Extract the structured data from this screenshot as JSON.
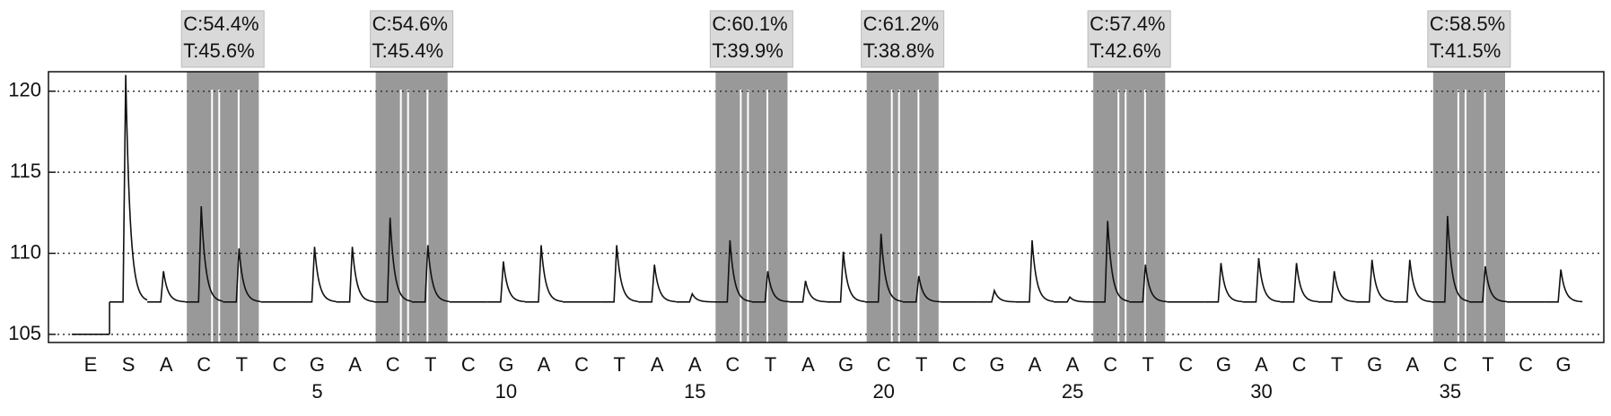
{
  "chart_data": {
    "type": "pyrogram",
    "categories": [
      "E",
      "S",
      "A",
      "C",
      "T",
      "C",
      "G",
      "A",
      "C",
      "T",
      "C",
      "G",
      "A",
      "C",
      "T",
      "A",
      "A",
      "C",
      "T",
      "A",
      "G",
      "C",
      "T",
      "C",
      "G",
      "A",
      "A",
      "C",
      "T",
      "C",
      "G",
      "A",
      "C",
      "T",
      "G",
      "A",
      "C",
      "T",
      "C",
      "G"
    ],
    "values": [
      105,
      121,
      108.9,
      112.9,
      110.3,
      107,
      110.4,
      110.4,
      112.2,
      110.5,
      107,
      109.5,
      110.5,
      107,
      110.5,
      109.3,
      107.5,
      110.8,
      108.9,
      108.3,
      110.1,
      111.2,
      108.6,
      107,
      107.7,
      110.8,
      107.3,
      112,
      109.3,
      107,
      109.4,
      109.7,
      109.4,
      108.9,
      109.6,
      109.6,
      112.3,
      109.2,
      107,
      109
    ],
    "color": "#111111",
    "position_labels": [
      5,
      10,
      15,
      20,
      25,
      30,
      35
    ],
    "annotations": [
      {
        "from": 3,
        "to": 4,
        "lines": [
          "C:54.4%",
          "T:45.6%"
        ]
      },
      {
        "from": 8,
        "to": 9,
        "lines": [
          "C:54.6%",
          "T:45.4%"
        ]
      },
      {
        "from": 17,
        "to": 18,
        "lines": [
          "C:60.1%",
          "T:39.9%"
        ]
      },
      {
        "from": 21,
        "to": 22,
        "lines": [
          "C:61.2%",
          "T:38.8%"
        ]
      },
      {
        "from": 27,
        "to": 28,
        "lines": [
          "C:57.4%",
          "T:42.6%"
        ]
      },
      {
        "from": 36,
        "to": 37,
        "lines": [
          "C:58.5%",
          "T:41.5%"
        ]
      }
    ],
    "ylim": [
      104.5,
      121.2
    ],
    "yticks": [
      105,
      110,
      115,
      120
    ],
    "grid": true
  }
}
